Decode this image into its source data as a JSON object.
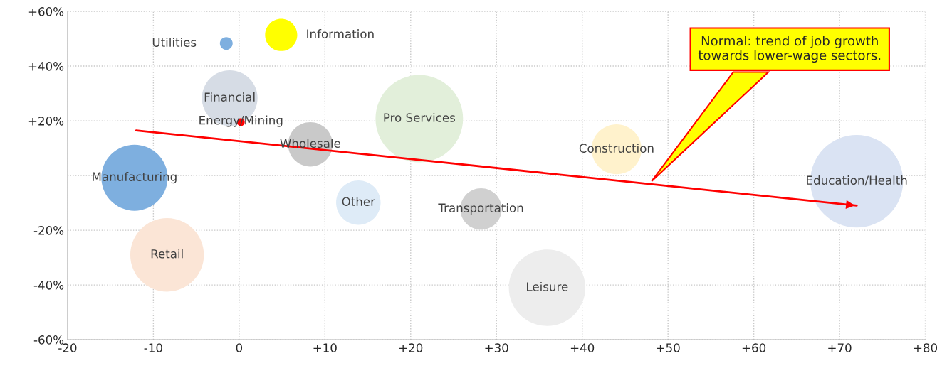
{
  "chart_data": {
    "type": "bubble",
    "series": [
      {
        "name": "Utilities",
        "color": "#7eafdf",
        "x": [
          -1.5
        ],
        "values": [
          48.3
        ],
        "sizes": [
          0.019
        ]
      },
      {
        "name": "Information",
        "color": "#ffff00",
        "x": [
          4.9
        ],
        "values": [
          51.4
        ],
        "sizes": [
          0.12
        ]
      },
      {
        "name": "Financial",
        "color": "#d6dce5",
        "x": [
          -1.1
        ],
        "values": [
          28.3
        ],
        "sizes": [
          0.36
        ]
      },
      {
        "name": "Energy/Mining",
        "color": "#ff0000",
        "x": [
          0.2
        ],
        "values": [
          19.5
        ],
        "sizes": [
          0.007
        ]
      },
      {
        "name": "Wholesale",
        "color": "#c9c9c9",
        "x": [
          8.3
        ],
        "values": [
          11.4
        ],
        "sizes": [
          0.23
        ]
      },
      {
        "name": "Pro Services",
        "color": "#e2efda",
        "x": [
          21
        ],
        "values": [
          20.8
        ],
        "sizes": [
          0.89
        ]
      },
      {
        "name": "Manufacturing",
        "color": "#7eafdf",
        "x": [
          -12.2
        ],
        "values": [
          -0.8
        ],
        "sizes": [
          0.51
        ]
      },
      {
        "name": "Other",
        "color": "#deebf7",
        "x": [
          13.9
        ],
        "values": [
          -9.9
        ],
        "sizes": [
          0.23
        ]
      },
      {
        "name": "Transportation",
        "color": "#d0d0d0",
        "x": [
          28.2
        ],
        "values": [
          -12.2
        ],
        "sizes": [
          0.2
        ]
      },
      {
        "name": "Retail",
        "color": "#fbe5d6",
        "x": [
          -8.4
        ],
        "values": [
          -29
        ],
        "sizes": [
          0.63
        ]
      },
      {
        "name": "Leisure",
        "color": "#ededed",
        "x": [
          35.9
        ],
        "values": [
          -41
        ],
        "sizes": [
          0.68
        ]
      },
      {
        "name": "Construction",
        "color": "#fff2cc",
        "x": [
          44
        ],
        "values": [
          9.6
        ],
        "sizes": [
          0.29
        ]
      },
      {
        "name": "Education/Health",
        "color": "#dae3f3",
        "x": [
          72
        ],
        "values": [
          -2.1
        ],
        "sizes": [
          1
        ]
      },
      {
        "type": "line",
        "color": "#ff0000",
        "x": [
          -12,
          72
        ],
        "values": [
          16.5,
          -11
        ]
      }
    ],
    "annotations": [
      "Normal: trend of job growth\ntowards lower-wage sectors."
    ],
    "xlim": [
      -20,
      80
    ],
    "xticks": [
      -20,
      -10,
      0,
      {
        "value": 10,
        "label": "+10"
      },
      {
        "value": 20,
        "label": "+20"
      },
      {
        "value": 30,
        "label": "+30"
      },
      {
        "value": 40,
        "label": "+40"
      },
      {
        "value": 50,
        "label": "+50"
      },
      {
        "value": 60,
        "label": "+60"
      },
      {
        "value": 70,
        "label": "+70"
      },
      {
        "value": 80,
        "label": "+80"
      }
    ],
    "ylim": [
      -60,
      60
    ],
    "yticks": [
      {
        "value": -60,
        "label": "-60%"
      },
      {
        "value": -40,
        "label": "-40%"
      },
      {
        "value": -20,
        "label": "-20%"
      },
      {
        "value": 0,
        "label": null
      },
      {
        "value": 20,
        "label": "+20%"
      },
      {
        "value": 40,
        "label": "+40%"
      },
      {
        "value": 60,
        "label": "+60%"
      }
    ],
    "grid": true,
    "legend": false
  }
}
